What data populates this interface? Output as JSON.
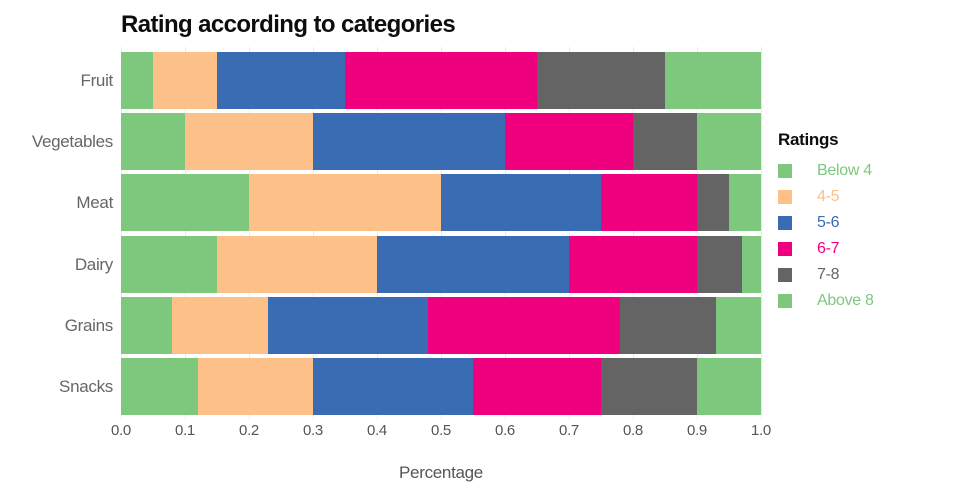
{
  "title": "Rating according to categories",
  "x_axis": {
    "label": "Percentage",
    "tick_labels": [
      "0.0",
      "0.1",
      "0.2",
      "0.3",
      "0.4",
      "0.5",
      "0.6",
      "0.7",
      "0.8",
      "0.9",
      "1.0"
    ]
  },
  "legend": {
    "title": "Ratings",
    "items": [
      {
        "label": "Below 4",
        "color": "#7dc87d"
      },
      {
        "label": "4-5",
        "color": "#fcc088"
      },
      {
        "label": "5-6",
        "color": "#3a6cb4"
      },
      {
        "label": "6-7",
        "color": "#ef007f"
      },
      {
        "label": "7-8",
        "color": "#646464"
      },
      {
        "label": "Above 8",
        "color": "#7dc87d"
      }
    ]
  },
  "chart_data": {
    "type": "bar",
    "orientation": "horizontal",
    "stacked": true,
    "normalized": true,
    "title": "Rating according to categories",
    "xlabel": "Percentage",
    "ylabel": "",
    "xlim": [
      0,
      1
    ],
    "xticks": [
      0,
      0.1,
      0.2,
      0.3,
      0.4,
      0.5,
      0.6,
      0.7,
      0.8,
      0.9,
      1.0
    ],
    "grid": true,
    "legend_position": "right",
    "categories": [
      "Fruit",
      "Vegetables",
      "Meat",
      "Dairy",
      "Grains",
      "Snacks"
    ],
    "series": [
      {
        "name": "Below 4",
        "color": "#7dc87d",
        "values": [
          0.05,
          0.1,
          0.2,
          0.15,
          0.08,
          0.12
        ]
      },
      {
        "name": "4-5",
        "color": "#fcc088",
        "values": [
          0.1,
          0.2,
          0.3,
          0.25,
          0.15,
          0.18
        ]
      },
      {
        "name": "5-6",
        "color": "#3a6cb4",
        "values": [
          0.2,
          0.3,
          0.25,
          0.3,
          0.25,
          0.25
        ]
      },
      {
        "name": "6-7",
        "color": "#ef007f",
        "values": [
          0.3,
          0.2,
          0.15,
          0.2,
          0.3,
          0.2
        ]
      },
      {
        "name": "7-8",
        "color": "#646464",
        "values": [
          0.2,
          0.1,
          0.05,
          0.07,
          0.15,
          0.15
        ]
      },
      {
        "name": "Above 8",
        "color": "#7dc87d",
        "values": [
          0.15,
          0.1,
          0.05,
          0.03,
          0.07,
          0.1
        ]
      }
    ]
  }
}
